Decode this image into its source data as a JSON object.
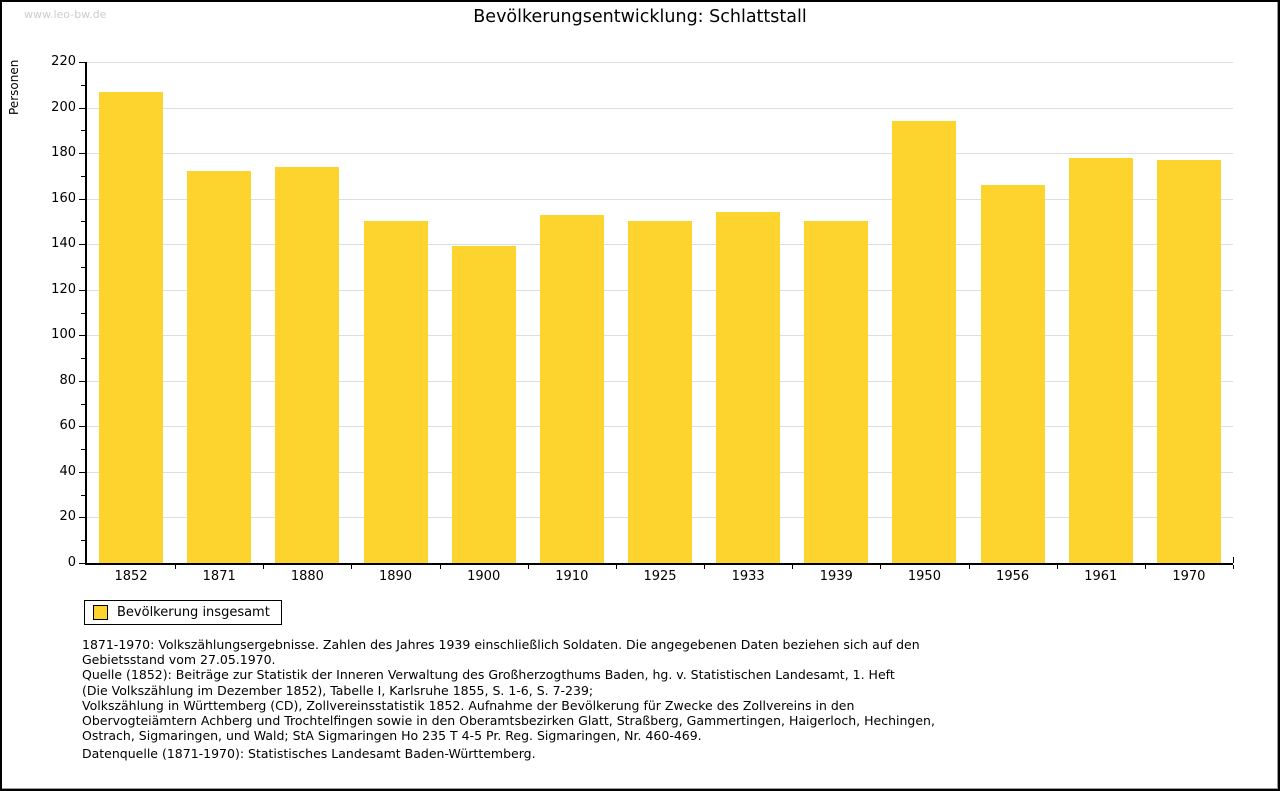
{
  "watermark": "www.leo-bw.de",
  "title": "Bevölkerungsentwicklung: Schlattstall",
  "legend": {
    "label": "Bevölkerung insgesamt"
  },
  "notes": "1871-1970: Volkszählungsergebnisse. Zahlen des Jahres 1939 einschließlich Soldaten. Die angegebenen Daten beziehen sich auf den\nGebietsstand vom 27.05.1970.\nQuelle (1852): Beiträge zur Statistik der Inneren Verwaltung des Großherzogthums Baden, hg. v. Statistischen Landesamt, 1. Heft\n(Die Volkszählung im Dezember 1852), Tabelle I, Karlsruhe 1855, S. 1-6, S. 7-239;\nVolkszählung in Württemberg (CD), Zollvereinsstatistik 1852. Aufnahme der Bevölkerung für Zwecke des Zollvereins in den\nObervogteiämtern Achberg und Trochtelfingen sowie in den Oberamtsbezirken Glatt, Straßberg, Gammertingen, Haigerloch, Hechingen,\nOstrach, Sigmaringen, und Wald; StA Sigmaringen Ho 235 T 4-5 Pr. Reg. Sigmaringen, Nr. 460-469.",
  "datasource": "Datenquelle (1871-1970): Statistisches Landesamt Baden-Württemberg.",
  "colors": {
    "bar": "#FDD32E",
    "grid": "#DDDDDD",
    "axis": "#000000",
    "watermark": "#CCCCCC"
  },
  "chart_data": {
    "type": "bar",
    "title": "Bevölkerungsentwicklung: Schlattstall",
    "categories": [
      "1852",
      "1871",
      "1880",
      "1890",
      "1900",
      "1910",
      "1925",
      "1933",
      "1939",
      "1950",
      "1956",
      "1961",
      "1970"
    ],
    "values": [
      207,
      172,
      174,
      150,
      139,
      153,
      150,
      154,
      150,
      194,
      166,
      178,
      177
    ],
    "series_name": "Bevölkerung insgesamt",
    "xlabel": "",
    "ylabel": "Personen",
    "ylim": [
      0,
      220
    ],
    "ytick_major_step": 20,
    "ytick_minor_step": 10,
    "grid": true,
    "legend_position": "bottom-left",
    "bar_color": "#FDD32E"
  }
}
